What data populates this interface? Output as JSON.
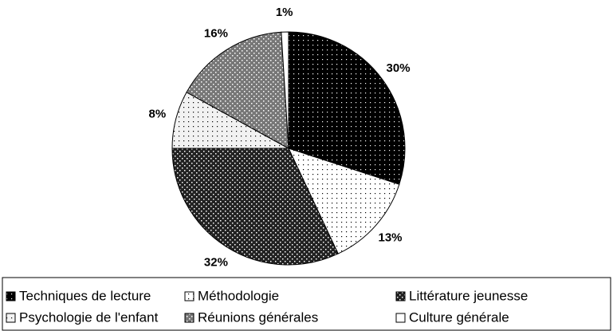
{
  "chart_data": {
    "type": "pie",
    "categories": [
      "Techniques de lecture",
      "Méthodologie",
      "Littérature jeunesse",
      "Psychologie de l'enfant",
      "Réunions générales",
      "Culture générale"
    ],
    "values": [
      30,
      13,
      32,
      8,
      16,
      1
    ],
    "value_labels": [
      "30%",
      "13%",
      "32%",
      "8%",
      "16%",
      "1%"
    ],
    "colors": [
      "#000000",
      "#ffffff",
      "#222222",
      "#f2f2f2",
      "#777777",
      "#ffffff"
    ],
    "legend": "bottom"
  }
}
